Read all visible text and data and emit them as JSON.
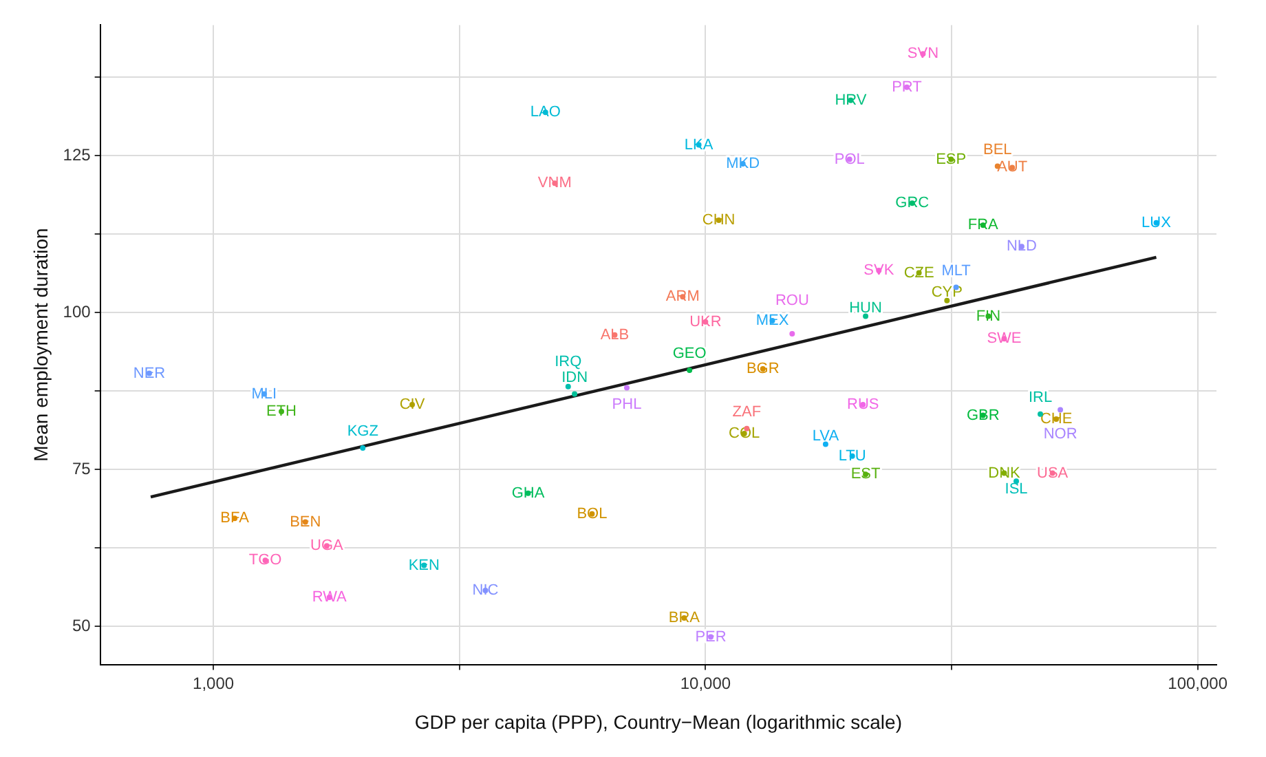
{
  "chart_data": {
    "type": "scatter",
    "xlabel": "GDP per capita (PPP), Country−Mean (logarithmic scale)",
    "ylabel": "Mean employment duration",
    "log": "x",
    "grid": true,
    "xlim": [
      589,
      109200
    ],
    "ylim": [
      43.9,
      145.8
    ],
    "xticks": [
      {
        "value": 1000,
        "label": "1,000"
      },
      {
        "value": 3162,
        "label": null
      },
      {
        "value": 10000,
        "label": "10,000"
      },
      {
        "value": 31623,
        "label": null
      },
      {
        "value": 100000,
        "label": "100,000"
      }
    ],
    "yticks": [
      50,
      {
        "value": 62.5,
        "label": null
      },
      75,
      {
        "value": 87.5,
        "label": null
      },
      100,
      {
        "value": 112.5,
        "label": null
      },
      125,
      {
        "value": 137.5,
        "label": null
      }
    ],
    "series": [
      {
        "name": "ALB",
        "color": "#f8766d",
        "x": [
          6540
        ],
        "values": [
          96.4
        ]
      },
      {
        "name": "ARM",
        "color": "#f37a58",
        "x": [
          8990
        ],
        "values": [
          102.5
        ]
      },
      {
        "name": "AUT",
        "color": "#ee7f43",
        "x": [
          42000
        ],
        "values": [
          123.1
        ]
      },
      {
        "name": "BEL",
        "color": "#e9832e",
        "x": [
          39200
        ],
        "values": [
          123.3
        ]
      },
      {
        "name": "BEN",
        "color": "#e48719",
        "x": [
          1538
        ],
        "values": [
          66.6
        ]
      },
      {
        "name": "BFA",
        "color": "#df8b03",
        "x": [
          1105
        ],
        "values": [
          67.2
        ]
      },
      {
        "name": "BGR",
        "color": "#d88f00",
        "x": [
          13080
        ],
        "values": [
          91
        ]
      },
      {
        "name": "BOL",
        "color": "#d09300",
        "x": [
          5880
        ],
        "values": [
          67.9
        ]
      },
      {
        "name": "BRA",
        "color": "#c89700",
        "x": [
          9050
        ],
        "values": [
          51.3
        ]
      },
      {
        "name": "CHE",
        "color": "#c09a00",
        "x": [
          51600
        ],
        "values": [
          83
        ]
      },
      {
        "name": "CHN",
        "color": "#b99e00",
        "x": [
          10640
        ],
        "values": [
          114.7
        ]
      },
      {
        "name": "CIV",
        "color": "#afa100",
        "x": [
          2535
        ],
        "values": [
          85.3
        ]
      },
      {
        "name": "COL",
        "color": "#a4a400",
        "x": [
          11990
        ],
        "values": [
          80.7
        ]
      },
      {
        "name": "CYP",
        "color": "#99a700",
        "x": [
          30950
        ],
        "values": [
          101.9
        ]
      },
      {
        "name": "CZE",
        "color": "#8daa00",
        "x": [
          27150
        ],
        "values": [
          106.3
        ]
      },
      {
        "name": "DNK",
        "color": "#82ad00",
        "x": [
          40450
        ],
        "values": [
          74.4
        ]
      },
      {
        "name": "ESP",
        "color": "#70af05",
        "x": [
          31540
        ],
        "values": [
          124.4
        ]
      },
      {
        "name": "EST",
        "color": "#58b110",
        "x": [
          21150
        ],
        "values": [
          74.2
        ]
      },
      {
        "name": "ETH",
        "color": "#40b41b",
        "x": [
          1375
        ],
        "values": [
          84.2
        ]
      },
      {
        "name": "FIN",
        "color": "#28b626",
        "x": [
          37550
        ],
        "values": [
          99.4
        ]
      },
      {
        "name": "FRA",
        "color": "#10b831",
        "x": [
          36640
        ],
        "values": [
          113.9
        ]
      },
      {
        "name": "GBR",
        "color": "#00ba3d",
        "x": [
          36640
        ],
        "values": [
          83.6
        ]
      },
      {
        "name": "GEO",
        "color": "#00bc4d",
        "x": [
          9280
        ],
        "values": [
          90.8
        ]
      },
      {
        "name": "GHA",
        "color": "#00bd5d",
        "x": [
          4360
        ],
        "values": [
          71.2
        ]
      },
      {
        "name": "GRC",
        "color": "#00be6e",
        "x": [
          26300
        ],
        "values": [
          117.4
        ]
      },
      {
        "name": "HRV",
        "color": "#00bf7e",
        "x": [
          19730
        ],
        "values": [
          133.8
        ]
      },
      {
        "name": "HUN",
        "color": "#00c08d",
        "x": [
          21150
        ],
        "values": [
          99.4
        ]
      },
      {
        "name": "IDN",
        "color": "#00c098",
        "x": [
          5420
        ],
        "values": [
          87
        ]
      },
      {
        "name": "IRL",
        "color": "#00c0a3",
        "x": [
          47900
        ],
        "values": [
          83.8
        ]
      },
      {
        "name": "IRQ",
        "color": "#00bfae",
        "x": [
          5260
        ],
        "values": [
          88.2
        ]
      },
      {
        "name": "ISL",
        "color": "#00bfb9",
        "x": [
          42800
        ],
        "values": [
          73.1
        ]
      },
      {
        "name": "KEN",
        "color": "#00bfc4",
        "x": [
          2680
        ],
        "values": [
          59.7
        ]
      },
      {
        "name": "KGZ",
        "color": "#00bdcd",
        "x": [
          2012
        ],
        "values": [
          78.4
        ]
      },
      {
        "name": "LAO",
        "color": "#00bbd5",
        "x": [
          4730
        ],
        "values": [
          131.9
        ]
      },
      {
        "name": "LKA",
        "color": "#00b9de",
        "x": [
          9690
        ],
        "values": [
          126.7
        ]
      },
      {
        "name": "LTU",
        "color": "#00b6e6",
        "x": [
          19870
        ],
        "values": [
          77.1
        ]
      },
      {
        "name": "LUX",
        "color": "#00b4ef",
        "x": [
          82400
        ],
        "values": [
          114.3
        ]
      },
      {
        "name": "LVA",
        "color": "#10b0f2",
        "x": [
          17540
        ],
        "values": [
          79
        ]
      },
      {
        "name": "MEX",
        "color": "#22abf5",
        "x": [
          13670
        ],
        "values": [
          98.7
        ]
      },
      {
        "name": "MKD",
        "color": "#35a7f8",
        "x": [
          11910
        ],
        "values": [
          123.7
        ]
      },
      {
        "name": "MLI",
        "color": "#4ba2fc",
        "x": [
          1268
        ],
        "values": [
          87
        ]
      },
      {
        "name": "MLT",
        "color": "#5b9dff",
        "x": [
          32300
        ],
        "values": [
          104
        ]
      },
      {
        "name": "NER",
        "color": "#6e98ff",
        "x": [
          741
        ],
        "values": [
          90.3
        ]
      },
      {
        "name": "NIC",
        "color": "#8291ff",
        "x": [
          3571
        ],
        "values": [
          55.7
        ]
      },
      {
        "name": "NLD",
        "color": "#968bff",
        "x": [
          43900
        ],
        "values": [
          110.5
        ]
      },
      {
        "name": "NOR",
        "color": "#a985ff",
        "x": [
          52600
        ],
        "values": [
          84.5
        ]
      },
      {
        "name": "PER",
        "color": "#bd7fff",
        "x": [
          10250
        ],
        "values": [
          48.3
        ]
      },
      {
        "name": "PHL",
        "color": "#cb7afc",
        "x": [
          6920
        ],
        "values": [
          88
        ]
      },
      {
        "name": "POL",
        "color": "#d475f7",
        "x": [
          19620
        ],
        "values": [
          124.4
        ]
      },
      {
        "name": "PRT",
        "color": "#df70f1",
        "x": [
          25650
        ],
        "values": [
          135.9
        ]
      },
      {
        "name": "ROU",
        "color": "#e86cec",
        "x": [
          15000
        ],
        "values": [
          96.6
        ]
      },
      {
        "name": "RUS",
        "color": "#f167e7",
        "x": [
          20890
        ],
        "values": [
          85.3
        ]
      },
      {
        "name": "RWA",
        "color": "#f664e0",
        "x": [
          1721
        ],
        "values": [
          54.6
        ]
      },
      {
        "name": "SVK",
        "color": "#f864d6",
        "x": [
          22500
        ],
        "values": [
          106.7
        ]
      },
      {
        "name": "SVN",
        "color": "#fa64cc",
        "x": [
          27660
        ],
        "values": [
          141.2
        ]
      },
      {
        "name": "SWE",
        "color": "#fb64c2",
        "x": [
          40450
        ],
        "values": [
          95.8
        ]
      },
      {
        "name": "TGO",
        "color": "#fe64b8",
        "x": [
          1275
        ],
        "values": [
          60.5
        ]
      },
      {
        "name": "UGA",
        "color": "#ff65ae",
        "x": [
          1700
        ],
        "values": [
          62.8
        ]
      },
      {
        "name": "UKR",
        "color": "#fd68a1",
        "x": [
          10000
        ],
        "values": [
          98.5
        ]
      },
      {
        "name": "USA",
        "color": "#fc6b94",
        "x": [
          50700
        ],
        "values": [
          74.4
        ]
      },
      {
        "name": "VNM",
        "color": "#fb6f87",
        "x": [
          4940
        ],
        "values": [
          120.6
        ]
      },
      {
        "name": "ZAF",
        "color": "#f9727a",
        "x": [
          12130
        ],
        "values": [
          81.5
        ]
      },
      {
        "type": "line",
        "color": "#1a1a1a",
        "x": [
          746,
          82400
        ],
        "values": [
          70.6,
          108.8
        ]
      }
    ]
  }
}
